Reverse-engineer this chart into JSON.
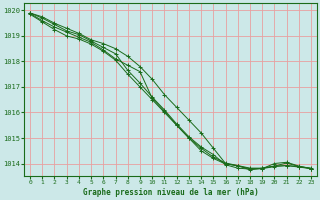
{
  "title": "Graphe pression niveau de la mer (hPa)",
  "bg_color": "#cce8e8",
  "grid_color": "#e8a0a0",
  "line_color": "#1a6b1a",
  "marker_color": "#1a6b1a",
  "xlim": [
    -0.5,
    23.5
  ],
  "ylim": [
    1013.5,
    1020.3
  ],
  "yticks": [
    1014,
    1015,
    1016,
    1017,
    1018,
    1019,
    1020
  ],
  "xticks": [
    0,
    1,
    2,
    3,
    4,
    5,
    6,
    7,
    8,
    9,
    10,
    11,
    12,
    13,
    14,
    15,
    16,
    17,
    18,
    19,
    20,
    21,
    22,
    23
  ],
  "series": [
    [
      1019.9,
      1019.75,
      1019.5,
      1019.3,
      1019.1,
      1018.85,
      1018.7,
      1018.5,
      1018.2,
      1017.8,
      1017.3,
      1016.7,
      1016.2,
      1015.7,
      1015.2,
      1014.6,
      1014.0,
      1013.9,
      1013.8,
      1013.8,
      1014.0,
      1014.05,
      1013.9,
      1013.8
    ],
    [
      1019.9,
      1019.7,
      1019.45,
      1019.2,
      1019.05,
      1018.8,
      1018.55,
      1018.3,
      1017.65,
      1017.15,
      1016.6,
      1016.1,
      1015.55,
      1015.05,
      1014.65,
      1014.35,
      1013.95,
      1013.82,
      1013.78,
      1013.8,
      1013.88,
      1013.92,
      1013.88,
      1013.8
    ],
    [
      1019.88,
      1019.6,
      1019.35,
      1019.15,
      1018.95,
      1018.75,
      1018.45,
      1018.1,
      1017.85,
      1017.6,
      1016.55,
      1016.05,
      1015.5,
      1015.0,
      1014.6,
      1014.25,
      1014.02,
      1013.92,
      1013.82,
      1013.82,
      1013.9,
      1013.92,
      1013.86,
      1013.8
    ],
    [
      1019.85,
      1019.55,
      1019.25,
      1019.0,
      1018.88,
      1018.68,
      1018.4,
      1018.05,
      1017.5,
      1017.0,
      1016.5,
      1016.0,
      1015.5,
      1015.0,
      1014.5,
      1014.2,
      1013.98,
      1013.92,
      1013.75,
      1013.82,
      1013.9,
      1014.02,
      1013.88,
      1013.82
    ]
  ]
}
